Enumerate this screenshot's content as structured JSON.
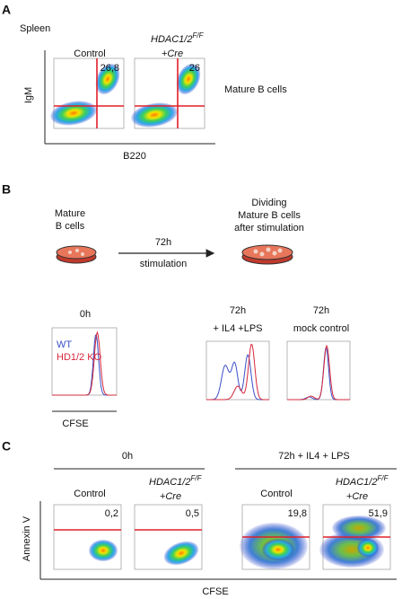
{
  "panel_a": {
    "label": "A",
    "tissue": "Spleen",
    "control_title": "Control",
    "ko_title": "HDAC1/2",
    "ko_sup": "F/F",
    "ko_cre": "+Cre",
    "control_percent": "26,8",
    "ko_percent": "26",
    "y_label": "IgM",
    "x_label": "B220",
    "population": "Mature B cells"
  },
  "panel_b": {
    "label": "B",
    "left_text": [
      "Mature",
      "B cells"
    ],
    "arrow_text": [
      "72h",
      "stimulation"
    ],
    "right_text": [
      "Dividing",
      "Mature B cells",
      "after stimulation"
    ],
    "hist_0h_title": "0h",
    "legend_wt": "WT",
    "legend_ko": "HD1/2 KO",
    "x_label": "CFSE",
    "hist_lps_title": [
      "72h",
      "+ IL4 +LPS"
    ],
    "hist_mock_title": [
      "72h",
      "mock control"
    ]
  },
  "panel_c": {
    "label": "C",
    "group_0h": "0h",
    "group_72h": "72h + IL4 + LPS",
    "control_title": "Control",
    "ko_title": "HDAC1/2",
    "ko_sup": "F/F",
    "ko_cre": "+Cre",
    "percents": [
      "0,2",
      "0,5",
      "19,8",
      "51,9"
    ],
    "y_label": "Annexin V",
    "x_label": "CFSE"
  }
}
